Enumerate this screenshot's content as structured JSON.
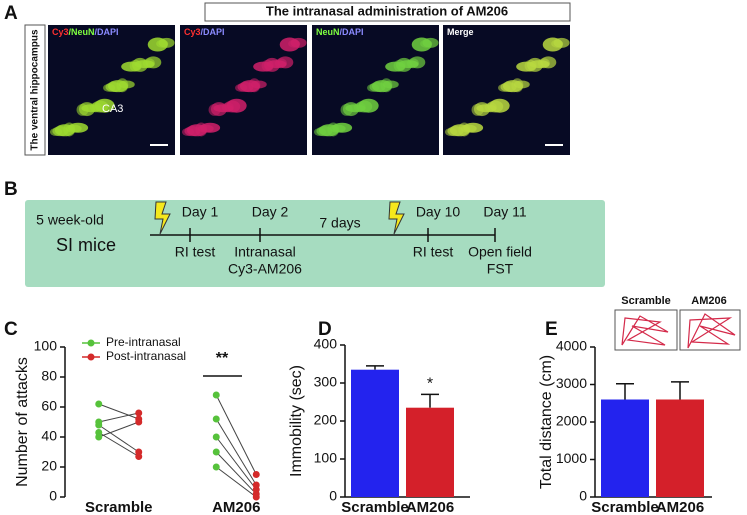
{
  "panel_labels": [
    "A",
    "B",
    "C",
    "D",
    "E"
  ],
  "panel_a": {
    "title": "The intranasal administration of AM206",
    "side_label": "The ventral hippocampus",
    "image_labels": [
      [
        "Cy3",
        "/NeuN",
        "/DAPI"
      ],
      [
        "Cy3",
        "/DAPI"
      ],
      [
        "NeuN",
        "/DAPI"
      ],
      [
        "Merge"
      ]
    ],
    "region_label": "CA3"
  },
  "panel_b": {
    "subject": [
      "5 week-old",
      "SI mice"
    ],
    "interval": "7 days",
    "timepoints": [
      {
        "day": "Day 1",
        "event": [
          "RI test"
        ]
      },
      {
        "day": "Day 2",
        "event": [
          "Intranasal",
          "Cy3-AM206"
        ]
      },
      {
        "day": "Day 10",
        "event": [
          "RI test"
        ]
      },
      {
        "day": "Day 11",
        "event": [
          "Open field",
          "FST"
        ]
      }
    ]
  },
  "open_field": {
    "labels": [
      "Scramble",
      "AM206"
    ]
  },
  "chart_data": [
    {
      "type": "paired",
      "ylabel": "Number of attacks",
      "categories": [
        "Scramble",
        "AM206"
      ],
      "series": [
        {
          "name": "Pre-intranasal",
          "color": "#56c23b",
          "values": [
            [
              62,
              50,
              48,
              43,
              40
            ],
            [
              68,
              52,
              40,
              30,
              20
            ]
          ]
        },
        {
          "name": "Post-intranasal",
          "color": "#d42a2a",
          "values": [
            [
              52,
              56,
              30,
              27,
              50
            ],
            [
              15,
              8,
              5,
              2,
              0
            ]
          ]
        }
      ],
      "ylim": [
        0,
        100
      ],
      "yticks": [
        0,
        20,
        40,
        60,
        80,
        100
      ],
      "annotation": "**"
    },
    {
      "type": "bar",
      "ylabel": "Immobility (sec)",
      "categories": [
        "Scramble",
        "AM206"
      ],
      "values": [
        335,
        235
      ],
      "errors": [
        10,
        35
      ],
      "colors": [
        "#2323ee",
        "#d4202a"
      ],
      "ylim": [
        0,
        400
      ],
      "yticks": [
        0,
        100,
        200,
        300,
        400
      ],
      "annotation": "*"
    },
    {
      "type": "bar",
      "ylabel": "Total distance (cm)",
      "categories": [
        "Scramble",
        "AM206"
      ],
      "values": [
        2600,
        2600
      ],
      "errors": [
        420,
        470
      ],
      "colors": [
        "#2323ee",
        "#d4202a"
      ],
      "ylim": [
        0,
        4000
      ],
      "yticks": [
        0,
        1000,
        2000,
        3000,
        4000
      ]
    }
  ]
}
